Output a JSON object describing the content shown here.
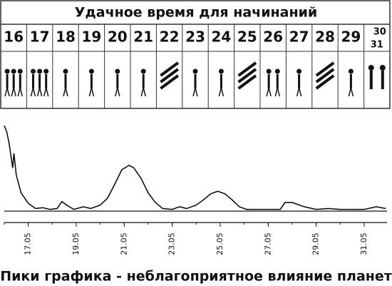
{
  "header": {
    "title": "Удачное время для начинаний"
  },
  "days": [
    "16",
    "17",
    "18",
    "19",
    "20",
    "21",
    "22",
    "23",
    "24",
    "25",
    "26",
    "27",
    "28",
    "29",
    "30",
    "31"
  ],
  "chart_data": {
    "type": "line",
    "x": [
      16.0,
      16.1,
      16.2,
      16.35,
      16.4,
      16.5,
      16.7,
      17.0,
      17.3,
      17.6,
      17.9,
      18.2,
      18.4,
      18.6,
      18.9,
      19.3,
      19.6,
      20.0,
      20.3,
      20.6,
      20.9,
      21.2,
      21.4,
      21.7,
      22.0,
      22.3,
      22.6,
      23.0,
      23.3,
      23.6,
      24.0,
      24.3,
      24.6,
      24.9,
      25.2,
      25.5,
      25.8,
      26.1,
      26.5,
      27.0,
      27.5,
      27.7,
      28.0,
      28.5,
      29.0,
      29.5,
      30.0,
      30.5,
      31.0,
      31.5,
      31.9
    ],
    "series": [
      {
        "color": "#000000",
        "values": [
          99,
          92,
          79,
          50,
          67,
          42,
          21,
          9,
          3,
          4,
          2,
          3,
          11,
          7,
          2,
          5,
          3,
          7,
          15,
          31,
          48,
          53,
          50,
          38,
          21,
          10,
          3,
          2,
          5,
          3,
          7,
          13,
          20,
          23,
          20,
          13,
          5,
          2,
          2,
          2,
          2,
          10,
          10,
          5,
          2,
          3,
          2,
          2,
          2,
          5,
          3
        ]
      }
    ],
    "xlim": [
      16,
      31.95
    ],
    "ylim": [
      0,
      100
    ],
    "xticks": [
      {
        "value": 17,
        "label": "17.05"
      },
      {
        "value": 19,
        "label": "19.05"
      },
      {
        "value": 21,
        "label": "21.05"
      },
      {
        "value": 23,
        "label": "23.05"
      },
      {
        "value": 25,
        "label": "25.05"
      },
      {
        "value": 27,
        "label": "27.05"
      },
      {
        "value": 29,
        "label": "29.05"
      },
      {
        "value": 31,
        "label": "31.05"
      }
    ],
    "xlabel": "Пики графика - неблагоприятное влияние планет"
  }
}
